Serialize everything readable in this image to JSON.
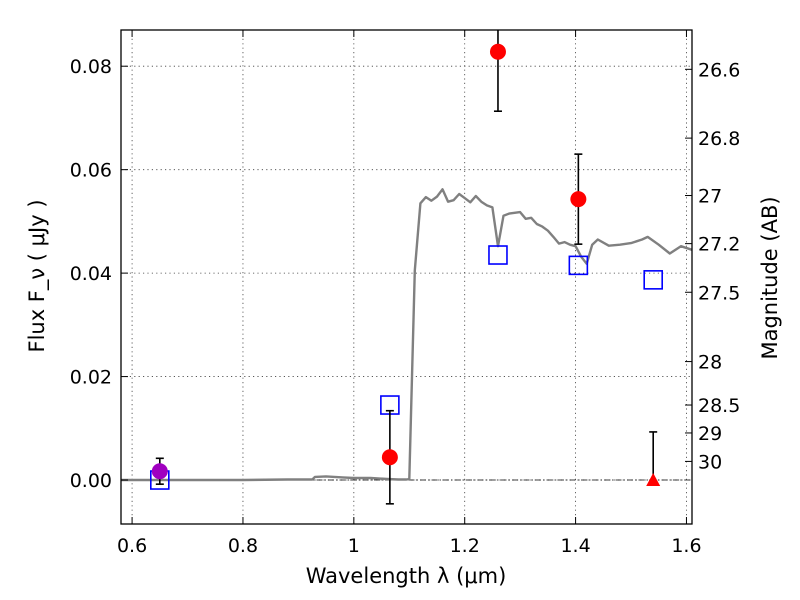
{
  "chart_data": {
    "type": "scatter",
    "title": "",
    "xlabel": "Wavelength  λ (μm)",
    "ylabel": "Flux  F_ν  ( μJy )",
    "y2label": "Magnitude (AB)",
    "xlim": [
      0.58,
      1.61
    ],
    "ylim": [
      -0.0085,
      0.087
    ],
    "grid": true,
    "xticks": [
      0.6,
      0.8,
      1.0,
      1.2,
      1.4,
      1.6
    ],
    "xtick_labels": [
      "0.6",
      "0.8",
      "1",
      "1.2",
      "1.4",
      "1.6"
    ],
    "yticks": [
      0.0,
      0.02,
      0.04,
      0.06,
      0.08
    ],
    "ytick_labels": [
      "0.00",
      "0.02",
      "0.04",
      "0.06",
      "0.08"
    ],
    "mag_ticks": [
      {
        "flux": 0.0794,
        "label": "26.6"
      },
      {
        "flux": 0.0661,
        "label": "26.8"
      },
      {
        "flux": 0.055,
        "label": "27"
      },
      {
        "flux": 0.0457,
        "label": "27.2"
      },
      {
        "flux": 0.0363,
        "label": "27.5"
      },
      {
        "flux": 0.0229,
        "label": "28"
      },
      {
        "flux": 0.0145,
        "label": "28.5"
      },
      {
        "flux": 0.0091,
        "label": "29"
      },
      {
        "flux": 0.0036,
        "label": "30"
      }
    ],
    "series": [
      {
        "kind": "model-spectrum",
        "color": "#808080",
        "x": [
          0.58,
          0.7,
          0.8,
          0.88,
          0.925,
          0.93,
          0.95,
          0.98,
          1.0,
          1.03,
          1.06,
          1.08,
          1.095,
          1.1,
          1.11,
          1.12,
          1.13,
          1.14,
          1.15,
          1.16,
          1.17,
          1.18,
          1.19,
          1.2,
          1.21,
          1.22,
          1.23,
          1.24,
          1.25,
          1.26,
          1.27,
          1.28,
          1.3,
          1.31,
          1.32,
          1.33,
          1.34,
          1.35,
          1.36,
          1.37,
          1.38,
          1.39,
          1.4,
          1.41,
          1.42,
          1.43,
          1.44,
          1.46,
          1.48,
          1.5,
          1.52,
          1.53,
          1.55,
          1.57,
          1.59,
          1.61
        ],
        "y": [
          0.0,
          0.0,
          0.0,
          0.0001,
          0.0001,
          0.0006,
          0.0007,
          0.0005,
          0.0004,
          0.0004,
          0.0002,
          0.0001,
          0.0001,
          0.0002,
          0.0405,
          0.0535,
          0.0547,
          0.054,
          0.0548,
          0.0562,
          0.0538,
          0.0541,
          0.0553,
          0.0545,
          0.0537,
          0.0549,
          0.0538,
          0.0531,
          0.0527,
          0.0452,
          0.0511,
          0.0515,
          0.0518,
          0.0505,
          0.0507,
          0.0495,
          0.049,
          0.0482,
          0.047,
          0.0457,
          0.046,
          0.0455,
          0.0452,
          0.0432,
          0.0418,
          0.0455,
          0.0465,
          0.0453,
          0.0455,
          0.0458,
          0.0465,
          0.047,
          0.0455,
          0.0438,
          0.0452,
          0.0445
        ]
      },
      {
        "kind": "model-band-flux",
        "marker": "open-square",
        "color": "#0000ff",
        "x": [
          0.65,
          1.065,
          1.26,
          1.405,
          1.54
        ],
        "y": [
          0.0,
          0.0145,
          0.0435,
          0.0415,
          0.0387
        ]
      },
      {
        "kind": "observed-detection",
        "marker": "circle",
        "color": "#ff0000",
        "x": [
          1.065,
          1.26,
          1.405
        ],
        "y": [
          0.0044,
          0.0828,
          0.0543
        ],
        "yerr": [
          0.009,
          0.0115,
          0.0087
        ]
      },
      {
        "kind": "observed-detection",
        "marker": "circle",
        "color": "#a000c0",
        "x": [
          0.65
        ],
        "y": [
          0.0017
        ],
        "yerr": [
          0.0025
        ]
      },
      {
        "kind": "upper-limit",
        "marker": "triangle",
        "color": "#ff0000",
        "x": [
          1.54
        ],
        "y": [
          0.0
        ],
        "yerr_upper": [
          0.0093
        ]
      }
    ]
  }
}
